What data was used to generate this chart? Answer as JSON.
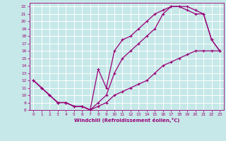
{
  "xlabel": "Windchill (Refroidissement éolien,°C)",
  "bg_color": "#c6e8e8",
  "grid_color": "#ffffff",
  "line_color": "#990077",
  "xlim": [
    -0.5,
    23.5
  ],
  "ylim": [
    8,
    22.5
  ],
  "xticks": [
    0,
    1,
    2,
    3,
    4,
    5,
    6,
    7,
    8,
    9,
    10,
    11,
    12,
    13,
    14,
    15,
    16,
    17,
    18,
    19,
    20,
    21,
    22,
    23
  ],
  "yticks": [
    8,
    9,
    10,
    11,
    12,
    13,
    14,
    15,
    16,
    17,
    18,
    19,
    20,
    21,
    22
  ],
  "line1_x": [
    0,
    1,
    2,
    3,
    4,
    5,
    6,
    7,
    8,
    9,
    10,
    11,
    12,
    13,
    14,
    15,
    16,
    17,
    18,
    19,
    20,
    21,
    22,
    23
  ],
  "line1_y": [
    12,
    11,
    10,
    9,
    9,
    8.5,
    8.5,
    8,
    8.5,
    9,
    10,
    10.5,
    11,
    11.5,
    12,
    13,
    14,
    14.5,
    15,
    15.5,
    16,
    16,
    16,
    16
  ],
  "line2_x": [
    0,
    1,
    2,
    3,
    4,
    5,
    6,
    7,
    8,
    9,
    10,
    11,
    12,
    13,
    14,
    15,
    16,
    17,
    18,
    19,
    20,
    21,
    22,
    23
  ],
  "line2_y": [
    12,
    11,
    10,
    9,
    9,
    8.5,
    8.5,
    8,
    13.5,
    11,
    16,
    17.5,
    18,
    19,
    20,
    21,
    21.5,
    22,
    22,
    21.5,
    21,
    21,
    17.5,
    16
  ],
  "line3_x": [
    0,
    1,
    2,
    3,
    4,
    5,
    6,
    7,
    8,
    9,
    10,
    11,
    12,
    13,
    14,
    15,
    16,
    17,
    18,
    19,
    20,
    21,
    22,
    23
  ],
  "line3_y": [
    12,
    11,
    10,
    9,
    9,
    8.5,
    8.5,
    8,
    9,
    10,
    13,
    15,
    16,
    17,
    18,
    19,
    21,
    22,
    22,
    22,
    21.5,
    21,
    17.5,
    16
  ]
}
